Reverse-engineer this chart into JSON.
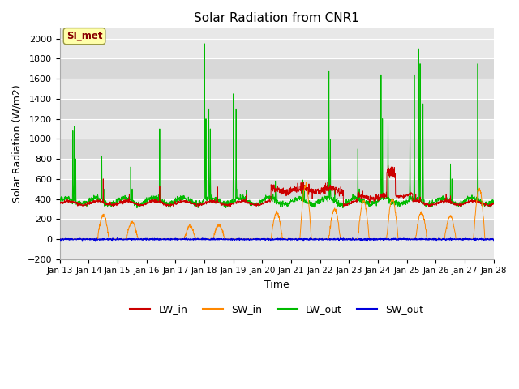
{
  "title": "Solar Radiation from CNR1",
  "xlabel": "Time",
  "ylabel": "Solar Radiation (W/m2)",
  "ylim": [
    -200,
    2100
  ],
  "yticks": [
    -200,
    0,
    200,
    400,
    600,
    800,
    1000,
    1200,
    1400,
    1600,
    1800,
    2000
  ],
  "colors": {
    "LW_in": "#cc0000",
    "SW_in": "#ff8800",
    "LW_out": "#00bb00",
    "SW_out": "#0000dd"
  },
  "annotation_text": "SI_met",
  "annotation_bg": "#ffffaa",
  "annotation_border": "#999944",
  "annotation_fg": "#880000",
  "n_days": 15,
  "start_day": 13,
  "band_colors": [
    "#e8e8e8",
    "#d8d8d8"
  ]
}
